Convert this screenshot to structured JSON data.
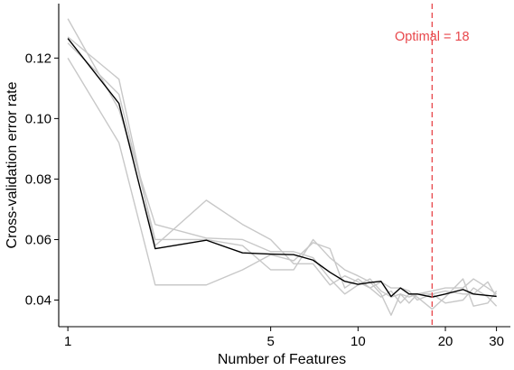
{
  "chart_data": {
    "type": "line",
    "xlabel": "Number of Features",
    "ylabel": "Cross-validation error rate",
    "x_scale": "log",
    "xlim": [
      0.93,
      33.5
    ],
    "ylim": [
      0.0312,
      0.138
    ],
    "x_ticks": [
      1,
      5,
      10,
      20,
      30
    ],
    "y_ticks": [
      0.04,
      0.06,
      0.08,
      0.1,
      0.12
    ],
    "y_tick_labels": [
      "0.04",
      "0.06",
      "0.08",
      "0.10",
      "0.12"
    ],
    "grid": false,
    "series_colors": {
      "folds": "#c8c8c8",
      "mean": "#000000"
    },
    "fold_series": [
      {
        "x": [
          1,
          1.5,
          2,
          3,
          4,
          5,
          6,
          7,
          8,
          9,
          10,
          11,
          12,
          13,
          14,
          15,
          16,
          18,
          20,
          23,
          25,
          28,
          30
        ],
        "values": [
          0.133,
          0.103,
          0.065,
          0.0605,
          0.06,
          0.056,
          0.056,
          0.054,
          0.047,
          0.042,
          0.045,
          0.047,
          0.043,
          0.041,
          0.042,
          0.039,
          0.042,
          0.043,
          0.044,
          0.044,
          0.047,
          0.044,
          0.042
        ]
      },
      {
        "x": [
          1,
          1.5,
          2,
          3,
          4,
          5,
          6,
          7,
          8,
          9,
          10,
          11,
          12,
          13,
          14,
          15,
          16,
          18,
          20,
          23,
          25,
          28,
          30
        ],
        "values": [
          0.125,
          0.108,
          0.06,
          0.06,
          0.058,
          0.05,
          0.05,
          0.06,
          0.054,
          0.05,
          0.048,
          0.046,
          0.042,
          0.035,
          0.042,
          0.041,
          0.042,
          0.042,
          0.039,
          0.04,
          0.044,
          0.041,
          0.038
        ]
      },
      {
        "x": [
          1,
          1.5,
          2,
          3,
          4,
          5,
          6,
          7,
          8,
          9,
          10,
          11,
          12,
          13,
          14,
          15,
          16,
          18,
          20,
          23,
          25,
          28,
          30
        ],
        "values": [
          0.12,
          0.092,
          0.045,
          0.045,
          0.05,
          0.055,
          0.053,
          0.059,
          0.057,
          0.044,
          0.047,
          0.044,
          0.046,
          0.044,
          0.044,
          0.043,
          0.04,
          0.042,
          0.043,
          0.042,
          0.042,
          0.046,
          0.041
        ]
      },
      {
        "x": [
          1,
          1.5,
          2,
          3,
          4,
          5,
          6,
          7,
          8,
          9,
          10,
          11,
          12,
          13,
          14,
          15,
          16,
          18,
          20,
          23,
          25,
          28,
          30
        ],
        "values": [
          0.127,
          0.113,
          0.058,
          0.073,
          0.065,
          0.06,
          0.052,
          0.052,
          0.045,
          0.048,
          0.046,
          0.044,
          0.041,
          0.043,
          0.039,
          0.042,
          0.041,
          0.037,
          0.041,
          0.047,
          0.038,
          0.039,
          0.043
        ]
      }
    ],
    "mean_series": {
      "x": [
        1,
        1.5,
        2,
        3,
        4,
        5,
        6,
        7,
        8,
        9,
        10,
        11,
        12,
        13,
        14,
        15,
        16,
        18,
        20,
        23,
        25,
        28,
        30
      ],
      "values": [
        0.1265,
        0.105,
        0.057,
        0.0598,
        0.0556,
        0.0552,
        0.055,
        0.0532,
        0.0492,
        0.0462,
        0.0452,
        0.0458,
        0.0462,
        0.0412,
        0.044,
        0.042,
        0.042,
        0.041,
        0.042,
        0.0435,
        0.042,
        0.0415,
        0.0412
      ]
    },
    "annotation": {
      "text": "Optimal = 18",
      "x": 18,
      "color": "#e8474b",
      "style": "dashed"
    }
  }
}
